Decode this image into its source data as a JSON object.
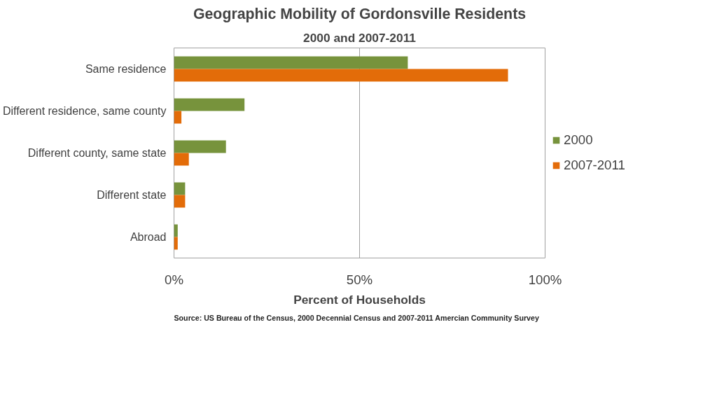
{
  "chart_data": {
    "type": "bar",
    "orientation": "horizontal",
    "title": "Geographic Mobility of Gordonsville Residents",
    "subtitle": "2000 and 2007-2011",
    "xlabel": "Percent of Households",
    "categories": [
      "Same residence",
      "Different residence, same county",
      "Different county, same state",
      "Different state",
      "Abroad"
    ],
    "series": [
      {
        "name": "2000",
        "color": "#77933c",
        "values": [
          63,
          19,
          14,
          3,
          1
        ]
      },
      {
        "name": "2007-2011",
        "color": "#e36c09",
        "values": [
          90,
          2,
          4,
          3,
          1
        ]
      }
    ],
    "xlim": [
      0,
      100
    ],
    "xticks": [
      {
        "value": 0,
        "label": "0%"
      },
      {
        "value": 50,
        "label": "50%"
      },
      {
        "value": 100,
        "label": "100%"
      }
    ],
    "grid": "x",
    "legend": "right",
    "annotations": [
      "Source: US Bureau of the Census, 2000 Decennial Census and 2007-2011 Amercian Community Survey"
    ]
  }
}
